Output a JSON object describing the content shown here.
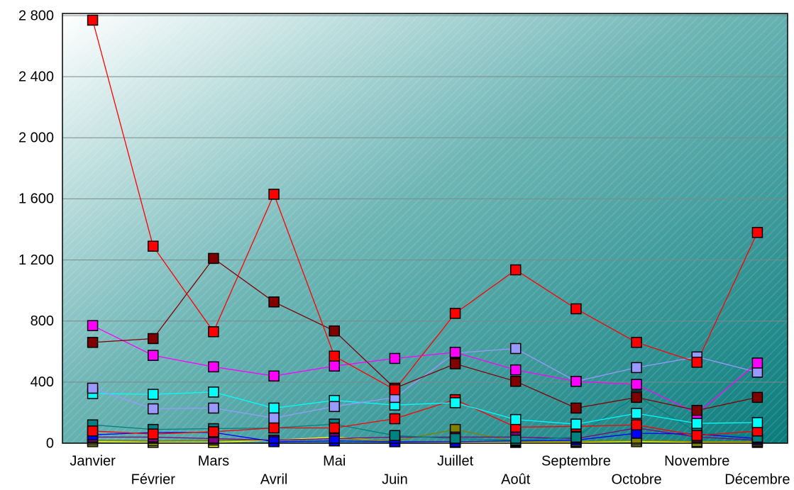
{
  "chart_data": {
    "type": "line",
    "categories": [
      "Janvier",
      "Février",
      "Mars",
      "Avril",
      "Mai",
      "Juin",
      "Juillet",
      "Août",
      "Septembre",
      "Octobre",
      "Novembre",
      "Décembre"
    ],
    "ylim": [
      0,
      2800
    ],
    "yticks": [
      0,
      400,
      800,
      {
        "value": 1200,
        "label": "1 200"
      },
      {
        "value": 1600,
        "label": "1 600"
      },
      {
        "value": 2000,
        "label": "2 000"
      },
      {
        "value": 2400,
        "label": "2 400"
      },
      {
        "value": 2800,
        "label": "2 800"
      }
    ],
    "grid": true,
    "series": [
      {
        "color": "#ffff00",
        "values": [
          10,
          5,
          5,
          20,
          40,
          10,
          5,
          5,
          5,
          10,
          5,
          5
        ]
      },
      {
        "color": "#808000",
        "values": [
          20,
          15,
          20,
          20,
          30,
          15,
          90,
          10,
          10,
          20,
          10,
          10
        ]
      },
      {
        "color": "#800080",
        "values": [
          40,
          40,
          30,
          20,
          30,
          40,
          40,
          40,
          30,
          100,
          40,
          20
        ]
      },
      {
        "color": "#0000ff",
        "values": [
          55,
          70,
          70,
          10,
          15,
          10,
          10,
          15,
          20,
          65,
          60,
          30
        ]
      },
      {
        "color": "#008080",
        "values": [
          120,
          90,
          95,
          100,
          125,
          50,
          30,
          20,
          40,
          310,
          70,
          40
        ]
      },
      {
        "color": "#ff0000",
        "values": [
          80,
          60,
          75,
          100,
          100,
          160,
          285,
          105,
          110,
          120,
          50,
          80
        ]
      },
      {
        "color": "#00ffff",
        "values": [
          325,
          320,
          335,
          230,
          280,
          250,
          265,
          155,
          125,
          195,
          130,
          135
        ]
      },
      {
        "color": "#9999ff",
        "values": [
          360,
          225,
          230,
          165,
          240,
          300,
          590,
          620,
          405,
          495,
          565,
          465
        ]
      },
      {
        "color": "#ff00ff",
        "values": [
          770,
          575,
          500,
          440,
          505,
          555,
          595,
          480,
          405,
          385,
          195,
          525
        ]
      },
      {
        "color": "#800000",
        "values": [
          660,
          685,
          1210,
          925,
          735,
          360,
          520,
          405,
          230,
          300,
          215,
          300
        ]
      },
      {
        "color": "#ff0000",
        "values": [
          2770,
          1290,
          730,
          1630,
          570,
          350,
          850,
          1135,
          880,
          660,
          530,
          1380
        ]
      }
    ]
  }
}
